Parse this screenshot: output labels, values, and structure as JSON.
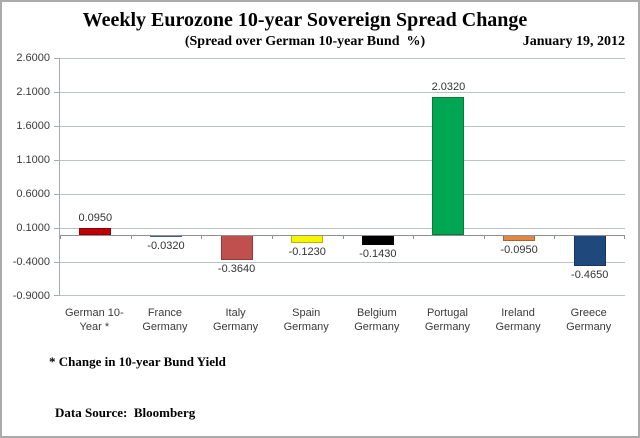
{
  "header": {
    "title": "Weekly Eurozone 10-year Sovereign Spread Change",
    "subtitle": "(Spread over German 10-year Bund  %)",
    "date": "January 19, 2012"
  },
  "footnotes": {
    "bund_note": "* Change in 10-year Bund Yield",
    "source": "Data Source:  Bloomberg"
  },
  "chart_data": {
    "type": "bar",
    "title": "Weekly Eurozone 10-year Sovereign Spread Change",
    "subtitle": "(Spread over German 10-year Bund %)",
    "xlabel": "",
    "ylabel": "",
    "ylim": [
      -0.9,
      2.6
    ],
    "grid": true,
    "legend": "none",
    "y_ticks": [
      2.6,
      2.1,
      1.6,
      1.1,
      0.6,
      0.1,
      -0.4,
      -0.9
    ],
    "y_tick_labels": [
      "2.6000",
      "2.1000",
      "1.6000",
      "1.1000",
      "0.6000",
      "0.1000",
      "-0.4000",
      "-0.9000"
    ],
    "categories": [
      "German 10-Year *",
      "France Germany",
      "Italy Germany",
      "Spain Germany",
      "Belgium Germany",
      "Portugal Germany",
      "Ireland Germany",
      "Greece Germany"
    ],
    "category_lines": [
      [
        "German 10-",
        "Year *"
      ],
      [
        "France",
        "Germany"
      ],
      [
        "Italy",
        "Germany"
      ],
      [
        "Spain",
        "Germany"
      ],
      [
        "Belgium",
        "Germany"
      ],
      [
        "Portugal",
        "Germany"
      ],
      [
        "Ireland",
        "Germany"
      ],
      [
        "Greece",
        "Germany"
      ]
    ],
    "values": [
      0.095,
      -0.032,
      -0.364,
      -0.123,
      -0.143,
      2.032,
      -0.095,
      -0.465
    ],
    "value_labels": [
      "0.0950",
      "-0.0320",
      "-0.3640",
      "-0.1230",
      "-0.1430",
      "2.0320",
      "-0.0950",
      "-0.4650"
    ],
    "bar_colors": [
      "#c00000",
      "#4f81bd",
      "#c0504d",
      "#f5f500",
      "#000000",
      "#00a651",
      "#e28742",
      "#1f497d"
    ],
    "gridline_color": "#bcc2c9",
    "zero_axis_color": "#8d9197"
  }
}
